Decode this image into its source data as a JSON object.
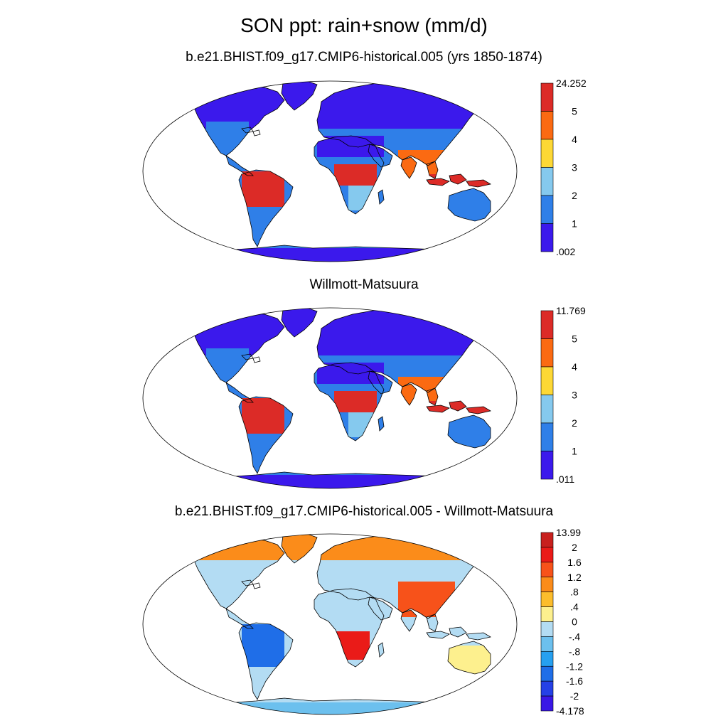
{
  "title": "SON ppt: rain+snow (mm/d)",
  "panels": [
    {
      "id": "model",
      "subtitle": "b.e21.BHIST.f09_g17.CMIP6-historical.005 (yrs 1850-1874)",
      "colorbar": {
        "labels": [
          "24.252",
          "5",
          "4",
          "3",
          "2",
          "1",
          ".002"
        ],
        "colors": [
          "#dc2b27",
          "#fb6a12",
          "#fdd835",
          "#85c9ee",
          "#2f7fe8",
          "#3b19ec"
        ]
      }
    },
    {
      "id": "obs",
      "subtitle": "Willmott-Matsuura",
      "colorbar": {
        "labels": [
          "11.769",
          "5",
          "4",
          "3",
          "2",
          "1",
          ".011"
        ],
        "colors": [
          "#dc2b27",
          "#fb6a12",
          "#fdd835",
          "#85c9ee",
          "#2f7fe8",
          "#3b19ec"
        ]
      }
    },
    {
      "id": "diff",
      "subtitle": "b.e21.BHIST.f09_g17.CMIP6-historical.005 - Willmott-Matsuura",
      "colorbar": {
        "labels": [
          "13.99",
          "2",
          "1.6",
          "1.2",
          ".8",
          ".4",
          "0",
          "-.4",
          "-.8",
          "-1.2",
          "-1.6",
          "-2",
          "-4.178"
        ],
        "colors": [
          "#c8201e",
          "#ea1b18",
          "#f7521a",
          "#fb8c1a",
          "#fcbd2c",
          "#fdf08e",
          "#b3dcf3",
          "#6cc0ee",
          "#26a0f0",
          "#1f6ee8",
          "#2540e6",
          "#3a17e6"
        ]
      }
    }
  ]
}
